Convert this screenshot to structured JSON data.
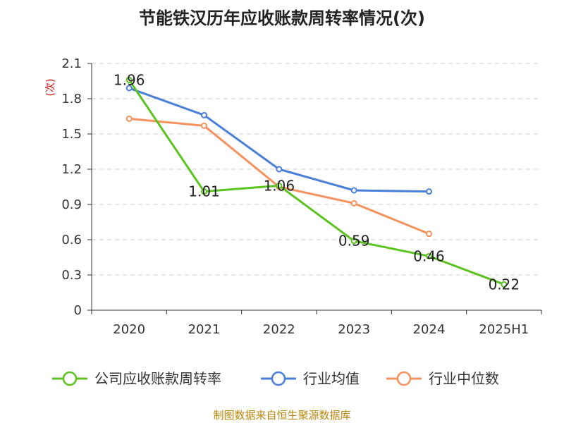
{
  "chart_data": {
    "type": "line",
    "title": "节能铁汉历年应收账款周转率情况(次)",
    "ylabel": "(次)",
    "xlabel": "",
    "categories": [
      "2020",
      "2021",
      "2022",
      "2023",
      "2024",
      "2025H1"
    ],
    "yticks": [
      "0",
      "0.3",
      "0.6",
      "0.9",
      "1.2",
      "1.5",
      "1.8",
      "2.1"
    ],
    "ylim": [
      0,
      2.1
    ],
    "grid": true,
    "legend_position": "bottom",
    "series": [
      {
        "name": "公司应收账款周转率",
        "color": "#5bc21f",
        "values": [
          1.96,
          1.01,
          1.06,
          0.59,
          0.46,
          0.22
        ],
        "labels": [
          "1.96",
          "1.01",
          "1.06",
          "0.59",
          "0.46",
          "0.22"
        ]
      },
      {
        "name": "行业均值",
        "color": "#4a7fd9",
        "values": [
          1.89,
          1.66,
          1.2,
          1.02,
          1.01,
          null
        ]
      },
      {
        "name": "行业中位数",
        "color": "#f4925e",
        "values": [
          1.63,
          1.57,
          1.05,
          0.91,
          0.65,
          null
        ]
      }
    ]
  },
  "footer": {
    "source": "制图数据来自恒生聚源数据库"
  }
}
